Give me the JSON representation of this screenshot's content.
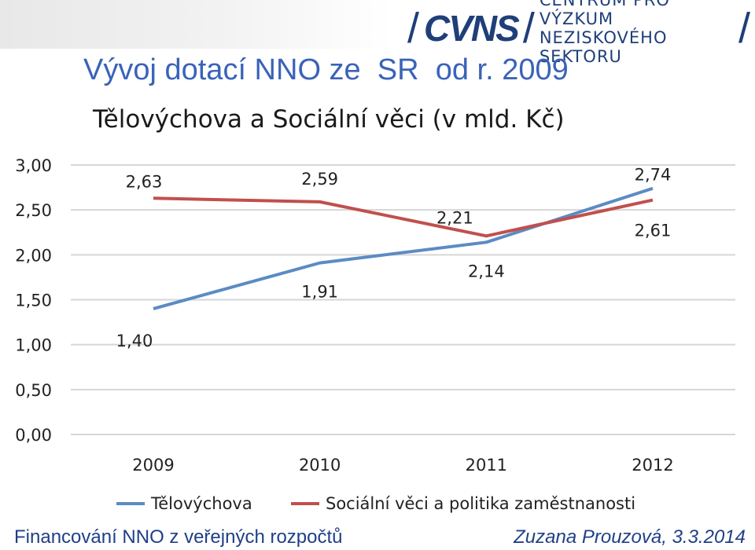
{
  "header": {
    "logo_mark": "CVNS",
    "logo_line1": "CENTRUM PRO VÝZKUM",
    "logo_line2": "NEZISKOVÉHO SEKTORU",
    "title": "Vývoj dotací NNO ze  SR  od r. 2009",
    "subtitle": "Tělovýchova a Sociální věci (v mld. Kč)"
  },
  "footer": {
    "left": "Financování NNO z veřejných rozpočtů",
    "right": "Zuzana Prouzová, 3.3.2014"
  },
  "chart_data": {
    "type": "line",
    "categories": [
      "2009",
      "2010",
      "2011",
      "2012"
    ],
    "y_ticks": [
      "0,00",
      "0,50",
      "1,00",
      "1,50",
      "2,00",
      "2,50",
      "3,00"
    ],
    "ylim": [
      0,
      3
    ],
    "grid": true,
    "legend_position": "bottom",
    "series": [
      {
        "name": "Tělovýchova",
        "color": "#5b8bc4",
        "values": [
          1.4,
          1.91,
          2.14,
          2.74
        ],
        "labels": [
          "1,40",
          "1,91",
          "2,14",
          "2,74"
        ]
      },
      {
        "name": "Sociální věci a politika zaměstnanosti",
        "color": "#c0504d",
        "values": [
          2.63,
          2.59,
          2.21,
          2.61
        ],
        "labels": [
          "2,63",
          "2,59",
          "2,21",
          "2,61"
        ]
      }
    ]
  }
}
